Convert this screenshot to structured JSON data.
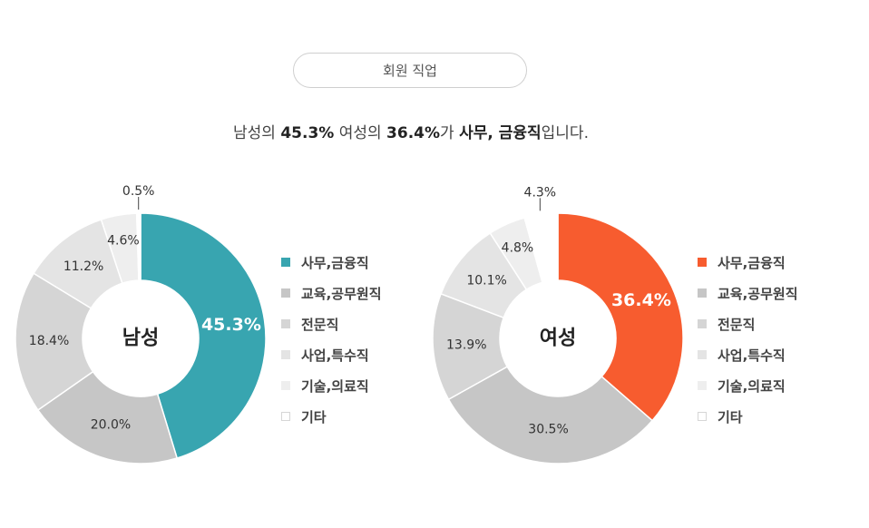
{
  "header": {
    "title": "회원 직업"
  },
  "summary": {
    "p1": "남성의 ",
    "male_pct": "45.3%",
    "p2": " 여성의 ",
    "female_pct": "36.4%",
    "p3": "가 ",
    "job": "사무, 금융직",
    "p4": "입니다."
  },
  "legend": [
    {
      "label": "사무,금융직"
    },
    {
      "label": "교육,공무원직"
    },
    {
      "label": "전문직"
    },
    {
      "label": "사업,특수직"
    },
    {
      "label": "기술,의료직"
    },
    {
      "label": "기타"
    }
  ],
  "chart_data": [
    {
      "type": "pie",
      "center_label": "남성",
      "categories": [
        "사무,금융직",
        "교육,공무원직",
        "전문직",
        "사업,특수직",
        "기술,의료직",
        "기타"
      ],
      "values": [
        45.3,
        20.0,
        18.4,
        11.2,
        4.6,
        0.5
      ],
      "labels": [
        "45.3%",
        "20.0%",
        "18.4%",
        "11.2%",
        "4.6%",
        "0.5%"
      ],
      "colors": [
        "#38a5b0",
        "#c6c6c6",
        "#d5d5d5",
        "#e4e4e4",
        "#eeeeee",
        "#ffffff"
      ]
    },
    {
      "type": "pie",
      "center_label": "여성",
      "categories": [
        "사무,금융직",
        "교육,공무원직",
        "전문직",
        "사업,특수직",
        "기술,의료직",
        "기타"
      ],
      "values": [
        36.4,
        30.5,
        13.9,
        10.1,
        4.8,
        4.3
      ],
      "labels": [
        "36.4%",
        "30.5%",
        "13.9%",
        "10.1%",
        "4.8%",
        "4.3%"
      ],
      "colors": [
        "#f75c2f",
        "#c6c6c6",
        "#d5d5d5",
        "#e4e4e4",
        "#eeeeee",
        "#ffffff"
      ]
    }
  ]
}
